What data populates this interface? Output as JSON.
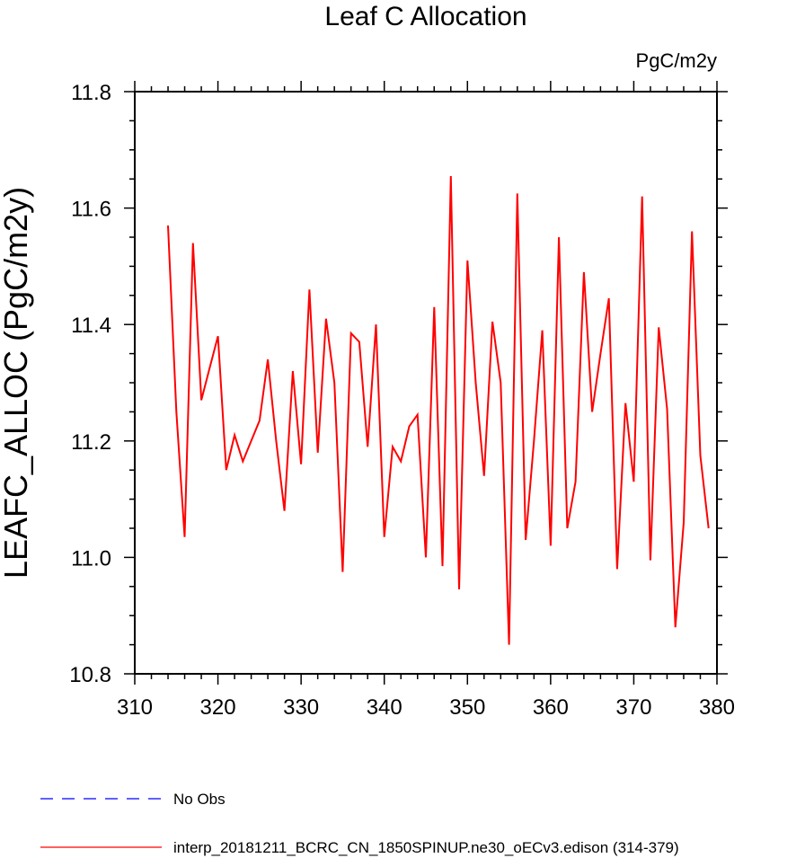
{
  "chart_data": {
    "type": "line",
    "title": "Leaf C Allocation",
    "units_label": "PgC/m2y",
    "ylabel": "LEAFC_ALLOC  (PgC/m2y)",
    "xlabel": "",
    "xlim": [
      310,
      380
    ],
    "ylim": [
      10.8,
      11.8
    ],
    "x_ticks": [
      310,
      320,
      330,
      340,
      350,
      360,
      370,
      380
    ],
    "x_tick_labels": [
      "310",
      "320",
      "330",
      "340",
      "350",
      "360",
      "370",
      "380"
    ],
    "y_ticks": [
      10.8,
      11.0,
      11.2,
      11.4,
      11.6,
      11.8
    ],
    "y_tick_labels": [
      "10.8",
      "11.0",
      "11.2",
      "11.4",
      "11.6",
      "11.8"
    ],
    "legend_position": "bottom",
    "series": [
      {
        "name": "No Obs",
        "color": "#0000ff",
        "dash": "dashed",
        "x": [],
        "values": []
      },
      {
        "name": "interp_20181211_BCRC_CN_1850SPINUP.ne30_oECv3.edison (314-379)",
        "color": "#ff0000",
        "dash": "solid",
        "x": [
          314,
          315,
          316,
          317,
          318,
          319,
          320,
          321,
          322,
          323,
          324,
          325,
          326,
          327,
          328,
          329,
          330,
          331,
          332,
          333,
          334,
          335,
          336,
          337,
          338,
          339,
          340,
          341,
          342,
          343,
          344,
          345,
          346,
          347,
          348,
          349,
          350,
          351,
          352,
          353,
          354,
          355,
          356,
          357,
          358,
          359,
          360,
          361,
          362,
          363,
          364,
          365,
          366,
          367,
          368,
          369,
          370,
          371,
          372,
          373,
          374,
          375,
          376,
          377,
          378,
          379
        ],
        "values": [
          11.57,
          11.25,
          11.035,
          11.54,
          11.27,
          11.325,
          11.38,
          11.15,
          11.21,
          11.165,
          11.2,
          11.235,
          11.34,
          11.2,
          11.08,
          11.32,
          11.16,
          11.46,
          11.18,
          11.41,
          11.3,
          10.975,
          11.385,
          11.37,
          11.19,
          11.4,
          11.035,
          11.19,
          11.165,
          11.225,
          11.245,
          11.0,
          11.43,
          10.985,
          11.655,
          10.945,
          11.51,
          11.3,
          11.14,
          11.405,
          11.3,
          10.85,
          11.625,
          11.03,
          11.2,
          11.39,
          11.02,
          11.55,
          11.05,
          11.13,
          11.49,
          11.25,
          11.35,
          11.445,
          10.98,
          11.265,
          11.13,
          11.62,
          10.995,
          11.395,
          11.255,
          10.88,
          11.06,
          11.56,
          11.175,
          11.05
        ]
      }
    ]
  }
}
